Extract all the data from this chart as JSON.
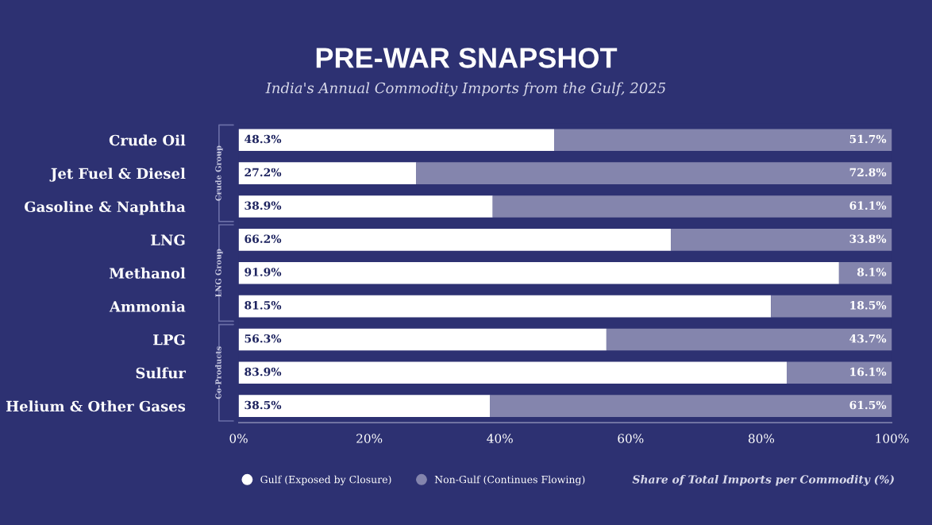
{
  "chart_data": {
    "type": "bar",
    "orientation": "horizontal",
    "stacked": true,
    "title": "PRE-WAR SNAPSHOT",
    "subtitle": "India's Annual Commodity Imports from the Gulf, 2025",
    "xlabel": "Share of Total Imports per Commodity (%)",
    "categories": [
      "Crude Oil",
      "Jet Fuel & Diesel",
      "Gasoline & Naphtha",
      "LNG",
      "Methanol",
      "Ammonia",
      "LPG",
      "Sulfur",
      "Helium & Other Gases"
    ],
    "series": [
      {
        "name": "Gulf (Exposed by Closure)",
        "color": "#ffffff",
        "values": [
          48.3,
          27.2,
          38.9,
          66.2,
          91.9,
          81.5,
          56.3,
          83.9,
          38.5
        ],
        "value_labels": [
          "48.3%",
          "27.2%",
          "38.9%",
          "66.2%",
          "91.9%",
          "81.5%",
          "56.3%",
          "83.9%",
          "38.5%"
        ]
      },
      {
        "name": "Non-Gulf (Continues Flowing)",
        "color": "#8485ad",
        "values": [
          51.7,
          72.8,
          61.1,
          33.8,
          8.1,
          18.5,
          43.7,
          16.1,
          61.5
        ],
        "value_labels": [
          "51.7%",
          "72.8%",
          "61.1%",
          "33.8%",
          "8.1%",
          "18.5%",
          "43.7%",
          "16.1%",
          "61.5%"
        ]
      }
    ],
    "xlim": [
      0,
      100
    ],
    "xticks": [
      {
        "value": 0,
        "label": "0%"
      },
      {
        "value": 20,
        "label": "20%"
      },
      {
        "value": 40,
        "label": "40%"
      },
      {
        "value": 60,
        "label": "60%"
      },
      {
        "value": 80,
        "label": "80%"
      },
      {
        "value": 100,
        "label": "100%"
      }
    ],
    "annotations": [
      "Crude Group",
      "LNG Group",
      "Co-Products"
    ],
    "legend": "bottom",
    "grid": false
  }
}
